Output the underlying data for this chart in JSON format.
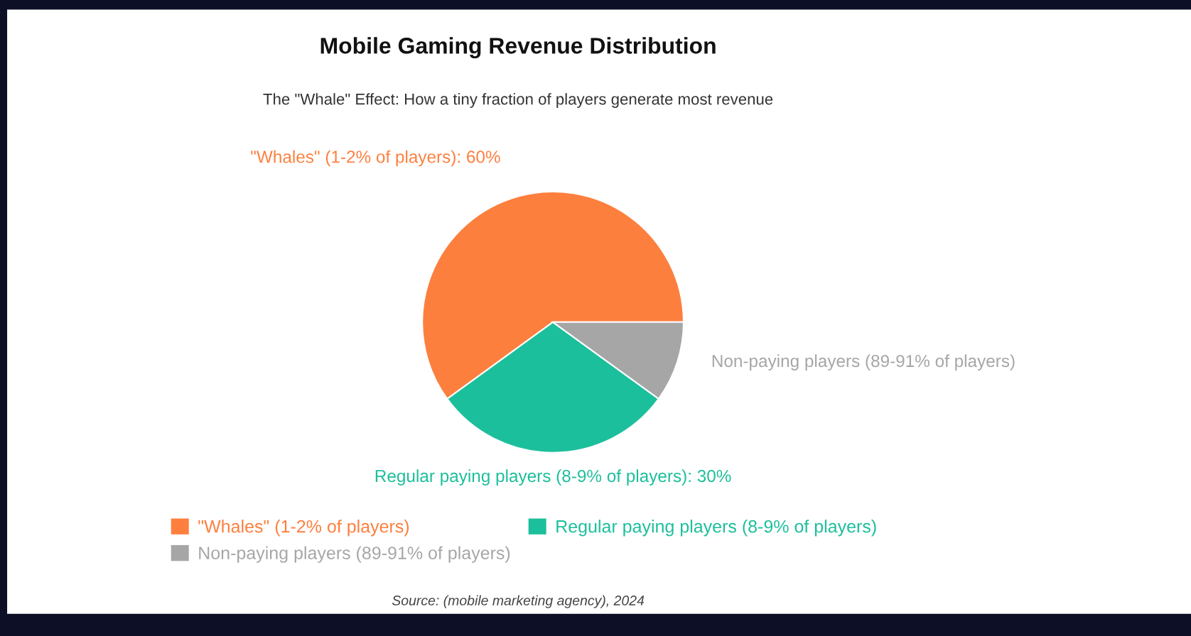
{
  "chart_data": {
    "type": "pie",
    "title": "Mobile Gaming Revenue Distribution",
    "subtitle": "The \"Whale\" Effect: How a tiny fraction of players generate most revenue",
    "categories": [
      "\"Whales\" (1-2% of players)",
      "Regular paying players (8-9% of players)",
      "Non-paying players (89-91% of players)"
    ],
    "values": [
      60,
      30,
      10
    ],
    "colors": [
      "#fd7f3e",
      "#1cbf9b",
      "#a6a6a6"
    ],
    "value_labels": [
      "\"Whales\" (1-2% of players): 60%",
      "Regular paying players (8-9% of players): 30%",
      null
    ],
    "legend": "bottom",
    "annotations": [
      "Source: (mobile marketing agency), 2024"
    ]
  }
}
